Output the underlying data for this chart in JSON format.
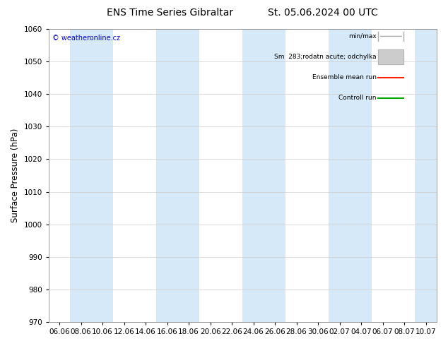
{
  "title_left": "ENS Time Series Gibraltar",
  "title_right": "St. 05.06.2024 00 UTC",
  "ylabel": "Surface Pressure (hPa)",
  "ylim": [
    970,
    1060
  ],
  "yticks": [
    970,
    980,
    990,
    1000,
    1010,
    1020,
    1030,
    1040,
    1050,
    1060
  ],
  "xtick_labels": [
    "06.06",
    "08.06",
    "10.06",
    "12.06",
    "14.06",
    "16.06",
    "18.06",
    "20.06",
    "22.06",
    "24.06",
    "26.06",
    "28.06",
    "30.06",
    "02.07",
    "04.07",
    "06.07",
    "08.07",
    "10.07"
  ],
  "band_color": "#d6e9f8",
  "background_color": "#ffffff",
  "copyright_text": "© weatheronline.cz",
  "legend_minmax_color": "#aaaaaa",
  "legend_spread_color": "#cccccc",
  "legend_mean_color": "#ff2200",
  "legend_ctrl_color": "#00aa00",
  "grid_color": "#cccccc",
  "title_fontsize": 10,
  "tick_fontsize": 7.5,
  "ylabel_fontsize": 8.5,
  "band_indices": [
    1,
    2,
    5,
    6,
    9,
    10,
    13,
    14,
    17
  ],
  "spine_color": "#888888"
}
